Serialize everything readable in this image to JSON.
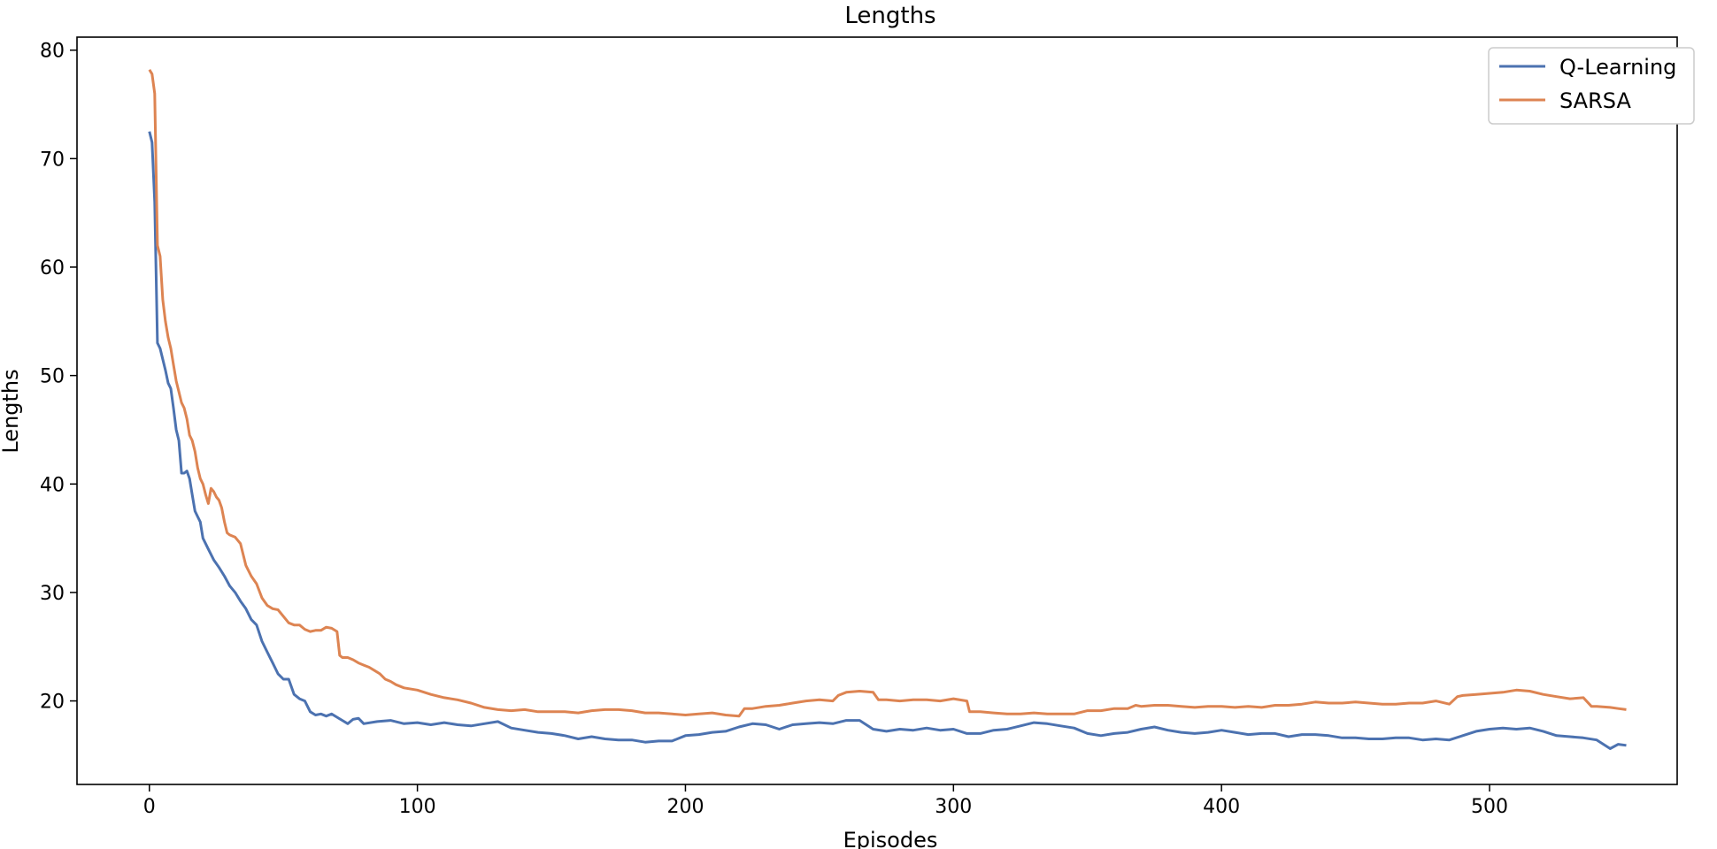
{
  "chart_data": {
    "type": "line",
    "title": "Lengths",
    "xlabel": "Episodes",
    "ylabel": "Lengths",
    "xlim": [
      -27,
      570
    ],
    "ylim": [
      12.3,
      81.2
    ],
    "xticks": [
      0,
      100,
      200,
      300,
      400,
      500
    ],
    "yticks": [
      20,
      30,
      40,
      50,
      60,
      70,
      80
    ],
    "grid": false,
    "legend": "top-right",
    "series": [
      {
        "name": "Q-Learning",
        "color": "#4c72b0",
        "points": [
          [
            0,
            72.5
          ],
          [
            1,
            71.5
          ],
          [
            2,
            66
          ],
          [
            3,
            53
          ],
          [
            4,
            52.5
          ],
          [
            6,
            50.5
          ],
          [
            7,
            49.3
          ],
          [
            8,
            48.8
          ],
          [
            9,
            47
          ],
          [
            10,
            45
          ],
          [
            11,
            44
          ],
          [
            12,
            41
          ],
          [
            13,
            41
          ],
          [
            14,
            41.2
          ],
          [
            15,
            40.5
          ],
          [
            16,
            39
          ],
          [
            17,
            37.5
          ],
          [
            18,
            37
          ],
          [
            19,
            36.5
          ],
          [
            20,
            35
          ],
          [
            22,
            34
          ],
          [
            24,
            33
          ],
          [
            26,
            32.3
          ],
          [
            28,
            31.5
          ],
          [
            30,
            30.6
          ],
          [
            32,
            30
          ],
          [
            34,
            29.2
          ],
          [
            36,
            28.5
          ],
          [
            38,
            27.5
          ],
          [
            40,
            27
          ],
          [
            42,
            25.5
          ],
          [
            44,
            24.5
          ],
          [
            46,
            23.5
          ],
          [
            48,
            22.5
          ],
          [
            50,
            22
          ],
          [
            52,
            22
          ],
          [
            54,
            20.6
          ],
          [
            56,
            20.2
          ],
          [
            58,
            20
          ],
          [
            60,
            19
          ],
          [
            62,
            18.7
          ],
          [
            64,
            18.8
          ],
          [
            66,
            18.6
          ],
          [
            68,
            18.8
          ],
          [
            70,
            18.5
          ],
          [
            72,
            18.2
          ],
          [
            74,
            17.9
          ],
          [
            76,
            18.3
          ],
          [
            78,
            18.4
          ],
          [
            80,
            17.9
          ],
          [
            85,
            18.1
          ],
          [
            90,
            18.2
          ],
          [
            95,
            17.9
          ],
          [
            100,
            18.0
          ],
          [
            105,
            17.8
          ],
          [
            110,
            18.0
          ],
          [
            115,
            17.8
          ],
          [
            120,
            17.7
          ],
          [
            125,
            17.9
          ],
          [
            130,
            18.1
          ],
          [
            135,
            17.5
          ],
          [
            140,
            17.3
          ],
          [
            145,
            17.1
          ],
          [
            150,
            17.0
          ],
          [
            155,
            16.8
          ],
          [
            160,
            16.5
          ],
          [
            165,
            16.7
          ],
          [
            170,
            16.5
          ],
          [
            175,
            16.4
          ],
          [
            180,
            16.4
          ],
          [
            185,
            16.2
          ],
          [
            190,
            16.3
          ],
          [
            195,
            16.3
          ],
          [
            200,
            16.8
          ],
          [
            205,
            16.9
          ],
          [
            210,
            17.1
          ],
          [
            215,
            17.2
          ],
          [
            220,
            17.6
          ],
          [
            225,
            17.9
          ],
          [
            230,
            17.8
          ],
          [
            235,
            17.4
          ],
          [
            240,
            17.8
          ],
          [
            245,
            17.9
          ],
          [
            250,
            18.0
          ],
          [
            255,
            17.9
          ],
          [
            260,
            18.2
          ],
          [
            265,
            18.2
          ],
          [
            270,
            17.4
          ],
          [
            275,
            17.2
          ],
          [
            280,
            17.4
          ],
          [
            285,
            17.3
          ],
          [
            290,
            17.5
          ],
          [
            295,
            17.3
          ],
          [
            300,
            17.4
          ],
          [
            305,
            17.0
          ],
          [
            310,
            17.0
          ],
          [
            315,
            17.3
          ],
          [
            320,
            17.4
          ],
          [
            325,
            17.7
          ],
          [
            330,
            18.0
          ],
          [
            335,
            17.9
          ],
          [
            340,
            17.7
          ],
          [
            345,
            17.5
          ],
          [
            350,
            17.0
          ],
          [
            355,
            16.8
          ],
          [
            360,
            17.0
          ],
          [
            365,
            17.1
          ],
          [
            370,
            17.4
          ],
          [
            375,
            17.6
          ],
          [
            380,
            17.3
          ],
          [
            385,
            17.1
          ],
          [
            390,
            17.0
          ],
          [
            395,
            17.1
          ],
          [
            400,
            17.3
          ],
          [
            405,
            17.1
          ],
          [
            410,
            16.9
          ],
          [
            415,
            17.0
          ],
          [
            420,
            17.0
          ],
          [
            425,
            16.7
          ],
          [
            430,
            16.9
          ],
          [
            435,
            16.9
          ],
          [
            440,
            16.8
          ],
          [
            445,
            16.6
          ],
          [
            450,
            16.6
          ],
          [
            455,
            16.5
          ],
          [
            460,
            16.5
          ],
          [
            465,
            16.6
          ],
          [
            470,
            16.6
          ],
          [
            475,
            16.4
          ],
          [
            480,
            16.5
          ],
          [
            485,
            16.4
          ],
          [
            490,
            16.8
          ],
          [
            495,
            17.2
          ],
          [
            500,
            17.4
          ],
          [
            505,
            17.5
          ],
          [
            510,
            17.4
          ],
          [
            515,
            17.5
          ],
          [
            520,
            17.2
          ],
          [
            525,
            16.8
          ],
          [
            530,
            16.7
          ],
          [
            535,
            16.6
          ],
          [
            540,
            16.4
          ],
          [
            545,
            15.6
          ],
          [
            548,
            16.0
          ],
          [
            551,
            15.9
          ]
        ]
      },
      {
        "name": "SARSA",
        "color": "#dd8452",
        "points": [
          [
            0,
            78.2
          ],
          [
            1,
            77.8
          ],
          [
            2,
            76
          ],
          [
            3,
            62
          ],
          [
            4,
            61
          ],
          [
            5,
            57
          ],
          [
            6,
            55
          ],
          [
            7,
            53.5
          ],
          [
            8,
            52.5
          ],
          [
            9,
            51
          ],
          [
            10,
            49.5
          ],
          [
            11,
            48.5
          ],
          [
            12,
            47.5
          ],
          [
            13,
            47
          ],
          [
            14,
            46
          ],
          [
            15,
            44.5
          ],
          [
            16,
            44
          ],
          [
            17,
            43
          ],
          [
            18,
            41.5
          ],
          [
            19,
            40.5
          ],
          [
            20,
            40
          ],
          [
            21,
            39
          ],
          [
            22,
            38.2
          ],
          [
            23,
            39.6
          ],
          [
            24,
            39.3
          ],
          [
            25,
            38.8
          ],
          [
            26,
            38.5
          ],
          [
            27,
            37.8
          ],
          [
            28,
            36.5
          ],
          [
            29,
            35.5
          ],
          [
            30,
            35.3
          ],
          [
            32,
            35.1
          ],
          [
            34,
            34.5
          ],
          [
            36,
            32.5
          ],
          [
            38,
            31.5
          ],
          [
            40,
            30.8
          ],
          [
            42,
            29.5
          ],
          [
            44,
            28.8
          ],
          [
            46,
            28.5
          ],
          [
            48,
            28.4
          ],
          [
            50,
            27.8
          ],
          [
            52,
            27.2
          ],
          [
            54,
            27.0
          ],
          [
            56,
            27.0
          ],
          [
            58,
            26.6
          ],
          [
            60,
            26.4
          ],
          [
            62,
            26.5
          ],
          [
            64,
            26.5
          ],
          [
            66,
            26.8
          ],
          [
            68,
            26.7
          ],
          [
            70,
            26.4
          ],
          [
            71,
            24.2
          ],
          [
            72,
            24.0
          ],
          [
            74,
            24.0
          ],
          [
            76,
            23.8
          ],
          [
            78,
            23.5
          ],
          [
            80,
            23.3
          ],
          [
            82,
            23.1
          ],
          [
            84,
            22.8
          ],
          [
            86,
            22.5
          ],
          [
            88,
            22.0
          ],
          [
            90,
            21.8
          ],
          [
            92,
            21.5
          ],
          [
            95,
            21.2
          ],
          [
            100,
            21.0
          ],
          [
            105,
            20.6
          ],
          [
            110,
            20.3
          ],
          [
            115,
            20.1
          ],
          [
            120,
            19.8
          ],
          [
            125,
            19.4
          ],
          [
            130,
            19.2
          ],
          [
            135,
            19.1
          ],
          [
            140,
            19.2
          ],
          [
            145,
            19.0
          ],
          [
            150,
            19.0
          ],
          [
            155,
            19.0
          ],
          [
            160,
            18.9
          ],
          [
            165,
            19.1
          ],
          [
            170,
            19.2
          ],
          [
            175,
            19.2
          ],
          [
            180,
            19.1
          ],
          [
            185,
            18.9
          ],
          [
            190,
            18.9
          ],
          [
            195,
            18.8
          ],
          [
            200,
            18.7
          ],
          [
            205,
            18.8
          ],
          [
            210,
            18.9
          ],
          [
            215,
            18.7
          ],
          [
            220,
            18.6
          ],
          [
            222,
            19.3
          ],
          [
            225,
            19.3
          ],
          [
            230,
            19.5
          ],
          [
            235,
            19.6
          ],
          [
            240,
            19.8
          ],
          [
            245,
            20.0
          ],
          [
            250,
            20.1
          ],
          [
            255,
            20.0
          ],
          [
            257,
            20.5
          ],
          [
            260,
            20.8
          ],
          [
            265,
            20.9
          ],
          [
            270,
            20.8
          ],
          [
            272,
            20.1
          ],
          [
            275,
            20.1
          ],
          [
            280,
            20.0
          ],
          [
            285,
            20.1
          ],
          [
            290,
            20.1
          ],
          [
            295,
            20.0
          ],
          [
            300,
            20.2
          ],
          [
            305,
            20.0
          ],
          [
            306,
            19.0
          ],
          [
            310,
            19.0
          ],
          [
            315,
            18.9
          ],
          [
            320,
            18.8
          ],
          [
            325,
            18.8
          ],
          [
            330,
            18.9
          ],
          [
            335,
            18.8
          ],
          [
            340,
            18.8
          ],
          [
            345,
            18.8
          ],
          [
            350,
            19.1
          ],
          [
            355,
            19.1
          ],
          [
            360,
            19.3
          ],
          [
            365,
            19.3
          ],
          [
            368,
            19.6
          ],
          [
            370,
            19.5
          ],
          [
            375,
            19.6
          ],
          [
            380,
            19.6
          ],
          [
            385,
            19.5
          ],
          [
            390,
            19.4
          ],
          [
            395,
            19.5
          ],
          [
            400,
            19.5
          ],
          [
            405,
            19.4
          ],
          [
            410,
            19.5
          ],
          [
            415,
            19.4
          ],
          [
            420,
            19.6
          ],
          [
            425,
            19.6
          ],
          [
            430,
            19.7
          ],
          [
            435,
            19.9
          ],
          [
            440,
            19.8
          ],
          [
            445,
            19.8
          ],
          [
            450,
            19.9
          ],
          [
            455,
            19.8
          ],
          [
            460,
            19.7
          ],
          [
            465,
            19.7
          ],
          [
            470,
            19.8
          ],
          [
            475,
            19.8
          ],
          [
            480,
            20.0
          ],
          [
            485,
            19.7
          ],
          [
            488,
            20.4
          ],
          [
            490,
            20.5
          ],
          [
            495,
            20.6
          ],
          [
            500,
            20.7
          ],
          [
            505,
            20.8
          ],
          [
            510,
            21.0
          ],
          [
            515,
            20.9
          ],
          [
            520,
            20.6
          ],
          [
            525,
            20.4
          ],
          [
            530,
            20.2
          ],
          [
            535,
            20.3
          ],
          [
            538,
            19.5
          ],
          [
            540,
            19.5
          ],
          [
            545,
            19.4
          ],
          [
            548,
            19.3
          ],
          [
            551,
            19.2
          ]
        ]
      }
    ]
  }
}
